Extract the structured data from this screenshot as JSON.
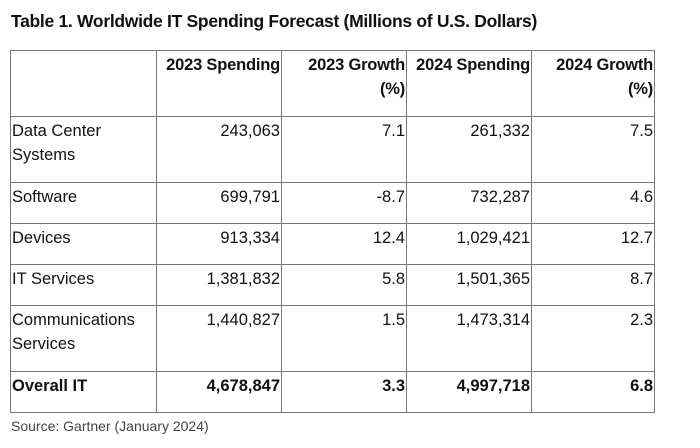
{
  "title": "Table 1. Worldwide IT Spending Forecast (Millions of U.S. Dollars)",
  "table": {
    "headers": [
      "",
      "2023 Spending",
      "2023 Growth (%)",
      "2024 Spending",
      "2024 Growth (%)"
    ],
    "rows": [
      [
        "Data Center Systems",
        "243,063",
        "7.1",
        "261,332",
        "7.5"
      ],
      [
        "Software",
        "699,791",
        "-8.7",
        "732,287",
        "4.6"
      ],
      [
        "Devices",
        "913,334",
        "12.4",
        "1,029,421",
        "12.7"
      ],
      [
        "IT Services",
        "1,381,832",
        "5.8",
        "1,501,365",
        "8.7"
      ],
      [
        "Communications Services",
        "1,440,827",
        "1.5",
        "1,473,314",
        "2.3"
      ]
    ],
    "total": [
      "Overall IT",
      "4,678,847",
      "3.3",
      "4,997,718",
      "6.8"
    ]
  },
  "source": "Source: Gartner (January 2024)"
}
